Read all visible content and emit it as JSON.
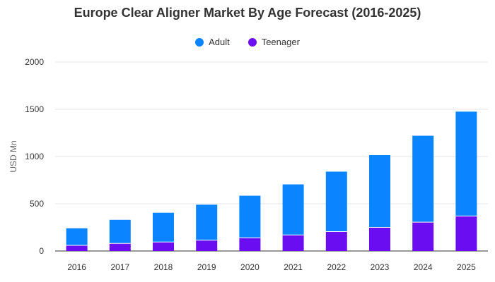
{
  "chart_data": {
    "type": "bar",
    "stacked": true,
    "title": "Europe Clear Aligner Market By Age Forecast (2016-2025)",
    "xlabel": "",
    "ylabel": "USD Mn",
    "categories": [
      "2016",
      "2017",
      "2018",
      "2019",
      "2020",
      "2021",
      "2022",
      "2023",
      "2024",
      "2025"
    ],
    "series": [
      {
        "name": "Teenager",
        "color": "#6a0df0",
        "values": [
          60,
          80,
          95,
          115,
          140,
          170,
          205,
          250,
          305,
          370
        ]
      },
      {
        "name": "Adult",
        "color": "#0a84ff",
        "values": [
          180,
          250,
          310,
          375,
          445,
          535,
          635,
          765,
          915,
          1105
        ]
      }
    ],
    "ylim": [
      0,
      2000
    ],
    "yticks": [
      0,
      500,
      1000,
      1500,
      2000
    ],
    "legend": {
      "position": "top",
      "order": [
        "Adult",
        "Teenager"
      ]
    },
    "grid": true
  }
}
